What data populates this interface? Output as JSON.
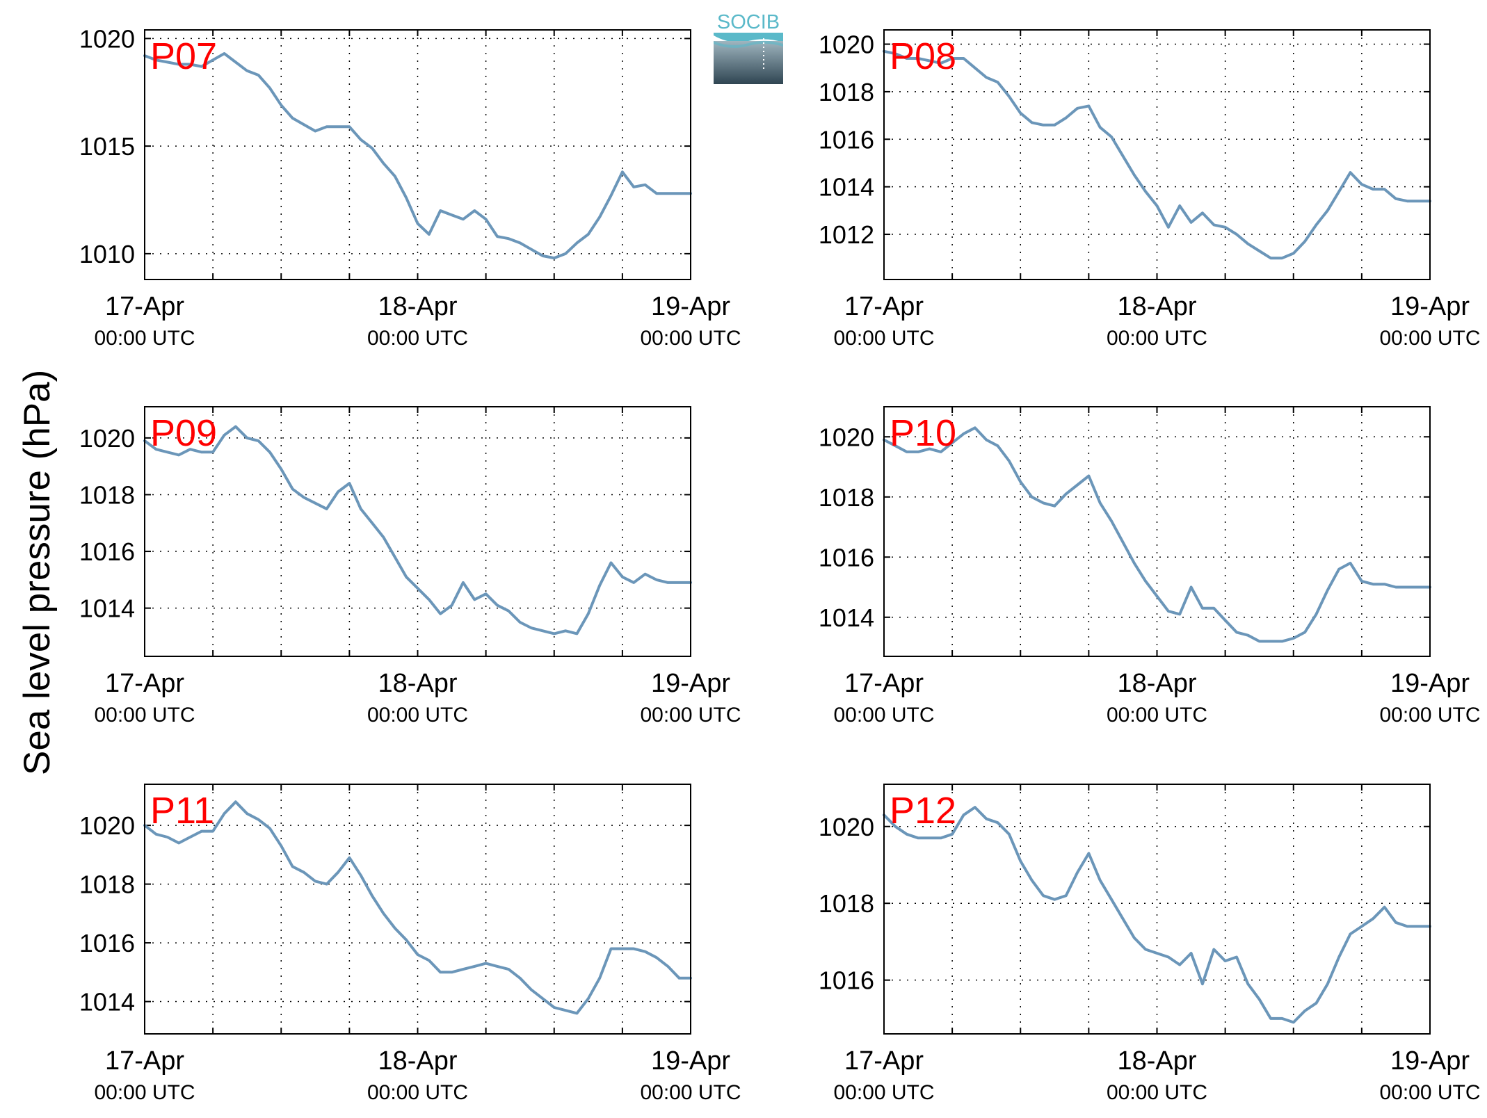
{
  "figure": {
    "ylabel": "Sea level pressure (hPa)",
    "logo_text": "SOCIB",
    "colors": {
      "line": "#6b96b9",
      "title": "#ff0000",
      "grid": "#000000",
      "logo_top": "#5ab9c9",
      "logo_bottom": "#2f4552"
    }
  },
  "chart_data": [
    {
      "type": "line",
      "title": "P07",
      "ylim": [
        1008.8,
        1020.4
      ],
      "yticks": [
        1010,
        1015,
        1020
      ],
      "xlim": [
        0,
        48
      ],
      "xgrid": [
        0,
        6,
        12,
        18,
        24,
        30,
        36,
        42,
        48
      ],
      "xticks": [
        {
          "x": 0,
          "date": "17-Apr",
          "time": "00:00 UTC"
        },
        {
          "x": 24,
          "date": "18-Apr",
          "time": "00:00 UTC"
        },
        {
          "x": 48,
          "date": "19-Apr",
          "time": "00:00 UTC"
        }
      ],
      "x": [
        0,
        1,
        2,
        3,
        4,
        5,
        6,
        7,
        8,
        9,
        10,
        11,
        12,
        13,
        14,
        15,
        16,
        17,
        18,
        19,
        20,
        21,
        22,
        23,
        24,
        25,
        26,
        27,
        28,
        29,
        30,
        31,
        32,
        33,
        34,
        35,
        36,
        37,
        38,
        39,
        40,
        41,
        42,
        43,
        44,
        45,
        46,
        47,
        48
      ],
      "y": [
        1019.2,
        1019.0,
        1018.9,
        1018.8,
        1018.8,
        1018.7,
        1019.0,
        1019.3,
        1018.9,
        1018.5,
        1018.3,
        1017.7,
        1016.9,
        1016.3,
        1016.0,
        1015.7,
        1015.9,
        1015.9,
        1015.9,
        1015.3,
        1014.9,
        1014.2,
        1013.6,
        1012.6,
        1011.4,
        1010.9,
        1012.0,
        1011.8,
        1011.6,
        1012.0,
        1011.6,
        1010.8,
        1010.7,
        1010.5,
        1010.2,
        1009.9,
        1009.8,
        1010.0,
        1010.5,
        1010.9,
        1011.7,
        1012.7,
        1013.8,
        1013.1,
        1013.2,
        1012.8,
        1012.8,
        1012.8,
        1012.8
      ]
    },
    {
      "type": "line",
      "title": "P08",
      "ylim": [
        1010.1,
        1020.6
      ],
      "yticks": [
        1012,
        1014,
        1016,
        1018,
        1020
      ],
      "xlim": [
        0,
        48
      ],
      "xgrid": [
        0,
        6,
        12,
        18,
        24,
        30,
        36,
        42,
        48
      ],
      "xticks": [
        {
          "x": 0,
          "date": "17-Apr",
          "time": "00:00 UTC"
        },
        {
          "x": 24,
          "date": "18-Apr",
          "time": "00:00 UTC"
        },
        {
          "x": 48,
          "date": "19-Apr",
          "time": "00:00 UTC"
        }
      ],
      "x": [
        0,
        1,
        2,
        3,
        4,
        5,
        6,
        7,
        8,
        9,
        10,
        11,
        12,
        13,
        14,
        15,
        16,
        17,
        18,
        19,
        20,
        21,
        22,
        23,
        24,
        25,
        26,
        27,
        28,
        29,
        30,
        31,
        32,
        33,
        34,
        35,
        36,
        37,
        38,
        39,
        40,
        41,
        42,
        43,
        44,
        45,
        46,
        47,
        48
      ],
      "y": [
        1019.7,
        1019.6,
        1019.4,
        1019.4,
        1019.3,
        1019.2,
        1019.4,
        1019.4,
        1019.0,
        1018.6,
        1018.4,
        1017.8,
        1017.1,
        1016.7,
        1016.6,
        1016.6,
        1016.9,
        1017.3,
        1017.4,
        1016.5,
        1016.1,
        1015.3,
        1014.5,
        1013.8,
        1013.2,
        1012.3,
        1013.2,
        1012.5,
        1012.9,
        1012.4,
        1012.3,
        1012.0,
        1011.6,
        1011.3,
        1011.0,
        1011.0,
        1011.2,
        1011.7,
        1012.4,
        1013.0,
        1013.8,
        1014.6,
        1014.1,
        1013.9,
        1013.9,
        1013.5,
        1013.4,
        1013.4,
        1013.4
      ]
    },
    {
      "type": "line",
      "title": "P09",
      "ylim": [
        1012.3,
        1021.1
      ],
      "yticks": [
        1014,
        1016,
        1018,
        1020
      ],
      "xlim": [
        0,
        48
      ],
      "xgrid": [
        0,
        6,
        12,
        18,
        24,
        30,
        36,
        42,
        48
      ],
      "xticks": [
        {
          "x": 0,
          "date": "17-Apr",
          "time": "00:00 UTC"
        },
        {
          "x": 24,
          "date": "18-Apr",
          "time": "00:00 UTC"
        },
        {
          "x": 48,
          "date": "19-Apr",
          "time": "00:00 UTC"
        }
      ],
      "x": [
        0,
        1,
        2,
        3,
        4,
        5,
        6,
        7,
        8,
        9,
        10,
        11,
        12,
        13,
        14,
        15,
        16,
        17,
        18,
        19,
        20,
        21,
        22,
        23,
        24,
        25,
        26,
        27,
        28,
        29,
        30,
        31,
        32,
        33,
        34,
        35,
        36,
        37,
        38,
        39,
        40,
        41,
        42,
        43,
        44,
        45,
        46,
        47,
        48
      ],
      "y": [
        1019.9,
        1019.6,
        1019.5,
        1019.4,
        1019.6,
        1019.5,
        1019.5,
        1020.1,
        1020.4,
        1020.0,
        1019.9,
        1019.5,
        1018.9,
        1018.2,
        1017.9,
        1017.7,
        1017.5,
        1018.1,
        1018.4,
        1017.5,
        1017.0,
        1016.5,
        1015.8,
        1015.1,
        1014.7,
        1014.3,
        1013.8,
        1014.1,
        1014.9,
        1014.3,
        1014.5,
        1014.1,
        1013.9,
        1013.5,
        1013.3,
        1013.2,
        1013.1,
        1013.2,
        1013.1,
        1013.8,
        1014.8,
        1015.6,
        1015.1,
        1014.9,
        1015.2,
        1015.0,
        1014.9,
        1014.9,
        1014.9
      ]
    },
    {
      "type": "line",
      "title": "P10",
      "ylim": [
        1012.7,
        1021.0
      ],
      "yticks": [
        1014,
        1016,
        1018,
        1020
      ],
      "xlim": [
        0,
        48
      ],
      "xgrid": [
        0,
        6,
        12,
        18,
        24,
        30,
        36,
        42,
        48
      ],
      "xticks": [
        {
          "x": 0,
          "date": "17-Apr",
          "time": "00:00 UTC"
        },
        {
          "x": 24,
          "date": "18-Apr",
          "time": "00:00 UTC"
        },
        {
          "x": 48,
          "date": "19-Apr",
          "time": "00:00 UTC"
        }
      ],
      "x": [
        0,
        1,
        2,
        3,
        4,
        5,
        6,
        7,
        8,
        9,
        10,
        11,
        12,
        13,
        14,
        15,
        16,
        17,
        18,
        19,
        20,
        21,
        22,
        23,
        24,
        25,
        26,
        27,
        28,
        29,
        30,
        31,
        32,
        33,
        34,
        35,
        36,
        37,
        38,
        39,
        40,
        41,
        42,
        43,
        44,
        45,
        46,
        47,
        48
      ],
      "y": [
        1019.9,
        1019.7,
        1019.5,
        1019.5,
        1019.6,
        1019.5,
        1019.8,
        1020.1,
        1020.3,
        1019.9,
        1019.7,
        1019.2,
        1018.5,
        1018.0,
        1017.8,
        1017.7,
        1018.1,
        1018.4,
        1018.7,
        1017.8,
        1017.2,
        1016.5,
        1015.8,
        1015.2,
        1014.7,
        1014.2,
        1014.1,
        1015.0,
        1014.3,
        1014.3,
        1013.9,
        1013.5,
        1013.4,
        1013.2,
        1013.2,
        1013.2,
        1013.3,
        1013.5,
        1014.1,
        1014.9,
        1015.6,
        1015.8,
        1015.2,
        1015.1,
        1015.1,
        1015.0,
        1015.0,
        1015.0,
        1015.0
      ]
    },
    {
      "type": "line",
      "title": "P11",
      "ylim": [
        1012.9,
        1021.4
      ],
      "yticks": [
        1014,
        1016,
        1018,
        1020
      ],
      "xlim": [
        0,
        48
      ],
      "xgrid": [
        0,
        6,
        12,
        18,
        24,
        30,
        36,
        42,
        48
      ],
      "xticks": [
        {
          "x": 0,
          "date": "17-Apr",
          "time": "00:00 UTC"
        },
        {
          "x": 24,
          "date": "18-Apr",
          "time": "00:00 UTC"
        },
        {
          "x": 48,
          "date": "19-Apr",
          "time": "00:00 UTC"
        }
      ],
      "x": [
        0,
        1,
        2,
        3,
        4,
        5,
        6,
        7,
        8,
        9,
        10,
        11,
        12,
        13,
        14,
        15,
        16,
        17,
        18,
        19,
        20,
        21,
        22,
        23,
        24,
        25,
        26,
        27,
        28,
        29,
        30,
        31,
        32,
        33,
        34,
        35,
        36,
        37,
        38,
        39,
        40,
        41,
        42,
        43,
        44,
        45,
        46,
        47,
        48
      ],
      "y": [
        1020.0,
        1019.7,
        1019.6,
        1019.4,
        1019.6,
        1019.8,
        1019.8,
        1020.4,
        1020.8,
        1020.4,
        1020.2,
        1019.9,
        1019.3,
        1018.6,
        1018.4,
        1018.1,
        1018.0,
        1018.4,
        1018.9,
        1018.3,
        1017.6,
        1017.0,
        1016.5,
        1016.1,
        1015.6,
        1015.4,
        1015.0,
        1015.0,
        1015.1,
        1015.2,
        1015.3,
        1015.2,
        1015.1,
        1014.8,
        1014.4,
        1014.1,
        1013.8,
        1013.7,
        1013.6,
        1014.1,
        1014.8,
        1015.8,
        1015.8,
        1015.8,
        1015.7,
        1015.5,
        1015.2,
        1014.8,
        1014.8
      ]
    },
    {
      "type": "line",
      "title": "P12",
      "ylim": [
        1014.6,
        1021.1
      ],
      "yticks": [
        1016,
        1018,
        1020
      ],
      "xlim": [
        0,
        48
      ],
      "xgrid": [
        0,
        6,
        12,
        18,
        24,
        30,
        36,
        42,
        48
      ],
      "xticks": [
        {
          "x": 0,
          "date": "17-Apr",
          "time": "00:00 UTC"
        },
        {
          "x": 24,
          "date": "18-Apr",
          "time": "00:00 UTC"
        },
        {
          "x": 48,
          "date": "19-Apr",
          "time": "00:00 UTC"
        }
      ],
      "x": [
        0,
        1,
        2,
        3,
        4,
        5,
        6,
        7,
        8,
        9,
        10,
        11,
        12,
        13,
        14,
        15,
        16,
        17,
        18,
        19,
        20,
        21,
        22,
        23,
        24,
        25,
        26,
        27,
        28,
        29,
        30,
        31,
        32,
        33,
        34,
        35,
        36,
        37,
        38,
        39,
        40,
        41,
        42,
        43,
        44,
        45,
        46,
        47,
        48
      ],
      "y": [
        1020.3,
        1020.0,
        1019.8,
        1019.7,
        1019.7,
        1019.7,
        1019.8,
        1020.3,
        1020.5,
        1020.2,
        1020.1,
        1019.8,
        1019.1,
        1018.6,
        1018.2,
        1018.1,
        1018.2,
        1018.8,
        1019.3,
        1018.6,
        1018.1,
        1017.6,
        1017.1,
        1016.8,
        1016.7,
        1016.6,
        1016.4,
        1016.7,
        1015.9,
        1016.8,
        1016.5,
        1016.6,
        1015.9,
        1015.5,
        1015.0,
        1015.0,
        1014.9,
        1015.2,
        1015.4,
        1015.9,
        1016.6,
        1017.2,
        1017.4,
        1017.6,
        1017.9,
        1017.5,
        1017.4,
        1017.4,
        1017.4
      ]
    }
  ]
}
